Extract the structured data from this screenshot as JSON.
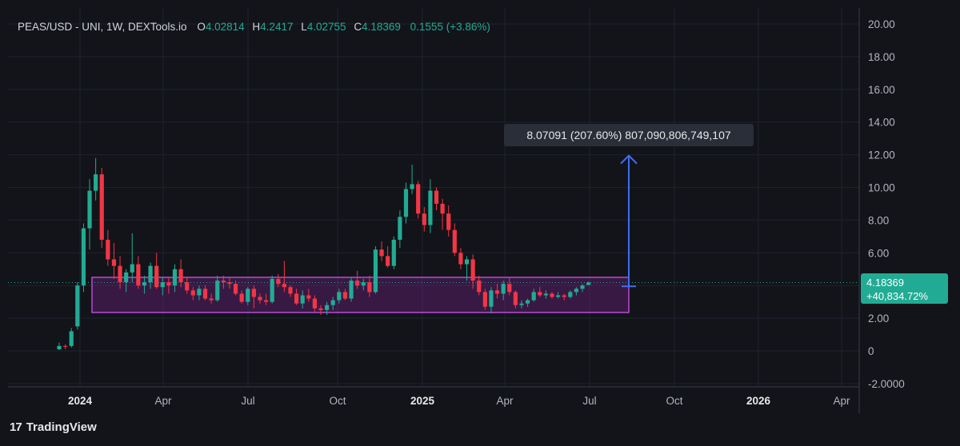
{
  "legend": {
    "symbol": "PEAS/USD - UNI, 1W, DEXTools.io",
    "o_label": "O",
    "o_value": "4.02814",
    "h_label": "H",
    "h_value": "4.2417",
    "l_label": "L",
    "l_value": "4.02755",
    "c_label": "C",
    "c_value": "4.18369",
    "change": "0.1555 (+3.86%)"
  },
  "price_badge": {
    "price": "4.18369",
    "change": "+40,834.72%"
  },
  "measure": {
    "label": "8.07091 (207.60%) 807,090,806,749,107",
    "from_price": 3.95,
    "to_price": 11.95
  },
  "range_box": {
    "low": 2.35,
    "high": 4.5
  },
  "brand": {
    "logo_text": "17",
    "name": "TradingView"
  },
  "colors": {
    "background": "#121419",
    "up": "#22ab94",
    "down": "#f23645",
    "grid": "#1f2230",
    "axis_text": "#b2b5be",
    "box_fill": "rgba(156, 39, 176, 0.28)",
    "box_stroke": "#b84bd6",
    "measure": "#3f6df2",
    "badge": "#22ab94"
  },
  "chart_data": {
    "type": "candlestick",
    "title": "PEAS/USD - UNI, 1W, DEXTools.io",
    "y_ticks": [
      "20.00",
      "18.00",
      "16.00",
      "14.00",
      "12.00",
      "10.00",
      "8.00",
      "6.00",
      "4.00",
      "2.00",
      "0",
      "-2.0000"
    ],
    "ylim": [
      -2.0,
      20.8
    ],
    "x_ticks": [
      {
        "label": "2024",
        "bold": true
      },
      {
        "label": "Apr",
        "bold": false
      },
      {
        "label": "Jul",
        "bold": false
      },
      {
        "label": "Oct",
        "bold": false
      },
      {
        "label": "2025",
        "bold": true
      },
      {
        "label": "Apr",
        "bold": false
      },
      {
        "label": "Jul",
        "bold": false
      },
      {
        "label": "Oct",
        "bold": false
      },
      {
        "label": "2026",
        "bold": true
      },
      {
        "label": "Apr",
        "bold": false
      }
    ],
    "last_price": 4.18369,
    "candles": [
      [
        0.1,
        0.5,
        0.05,
        0.3
      ],
      [
        0.3,
        0.4,
        0.1,
        0.25
      ],
      [
        0.3,
        1.4,
        0.2,
        1.2
      ],
      [
        1.5,
        4.2,
        1.3,
        4.0
      ],
      [
        4.0,
        7.8,
        3.6,
        7.5
      ],
      [
        7.5,
        10.5,
        6.2,
        9.8
      ],
      [
        9.8,
        11.8,
        9.2,
        10.8
      ],
      [
        10.8,
        11.2,
        6.3,
        6.8
      ],
      [
        6.8,
        7.4,
        5.2,
        5.6
      ],
      [
        5.6,
        6.6,
        4.4,
        5.2
      ],
      [
        5.2,
        5.8,
        3.8,
        4.2
      ],
      [
        4.2,
        5.0,
        3.6,
        4.8
      ],
      [
        4.8,
        7.2,
        4.2,
        5.3
      ],
      [
        5.3,
        5.8,
        3.8,
        4.0
      ],
      [
        4.0,
        4.6,
        3.5,
        4.2
      ],
      [
        4.2,
        5.4,
        3.8,
        5.2
      ],
      [
        5.2,
        6.0,
        3.8,
        3.9
      ],
      [
        3.9,
        4.5,
        3.4,
        4.2
      ],
      [
        4.2,
        4.5,
        3.5,
        4.0
      ],
      [
        4.0,
        5.3,
        3.6,
        5.0
      ],
      [
        5.0,
        5.6,
        3.9,
        4.2
      ],
      [
        4.2,
        4.5,
        3.5,
        3.7
      ],
      [
        3.7,
        3.9,
        3.1,
        3.4
      ],
      [
        3.4,
        4.0,
        3.1,
        3.8
      ],
      [
        3.8,
        4.0,
        3.1,
        3.2
      ],
      [
        3.2,
        3.5,
        2.9,
        3.1
      ],
      [
        3.1,
        4.6,
        3.0,
        4.3
      ],
      [
        4.3,
        4.6,
        3.8,
        4.2
      ],
      [
        4.2,
        4.5,
        3.8,
        4.1
      ],
      [
        4.1,
        4.3,
        3.4,
        3.5
      ],
      [
        3.5,
        3.7,
        2.9,
        3.0
      ],
      [
        3.0,
        3.9,
        2.8,
        3.8
      ],
      [
        3.8,
        4.0,
        2.6,
        3.3
      ],
      [
        3.3,
        3.5,
        2.9,
        3.1
      ],
      [
        3.1,
        3.5,
        2.8,
        3.0
      ],
      [
        3.0,
        4.6,
        2.9,
        4.4
      ],
      [
        4.4,
        4.7,
        3.9,
        4.1
      ],
      [
        4.1,
        5.5,
        3.6,
        3.9
      ],
      [
        3.9,
        4.0,
        3.3,
        3.5
      ],
      [
        3.5,
        3.8,
        2.8,
        2.9
      ],
      [
        2.9,
        3.7,
        2.6,
        3.4
      ],
      [
        3.4,
        3.8,
        3.0,
        3.2
      ],
      [
        3.2,
        3.4,
        2.4,
        2.6
      ],
      [
        2.6,
        2.8,
        2.2,
        2.5
      ],
      [
        2.5,
        3.0,
        2.2,
        2.8
      ],
      [
        2.8,
        3.3,
        2.5,
        3.1
      ],
      [
        3.1,
        3.8,
        2.9,
        3.6
      ],
      [
        3.6,
        3.8,
        3.1,
        3.2
      ],
      [
        3.2,
        4.5,
        3.0,
        4.3
      ],
      [
        4.3,
        4.9,
        3.8,
        4.0
      ],
      [
        4.0,
        4.4,
        3.7,
        4.2
      ],
      [
        4.2,
        4.6,
        3.3,
        3.6
      ],
      [
        3.6,
        6.4,
        3.5,
        6.2
      ],
      [
        6.2,
        6.7,
        5.5,
        5.8
      ],
      [
        5.8,
        6.4,
        5.1,
        5.2
      ],
      [
        5.2,
        7.0,
        5.0,
        6.8
      ],
      [
        6.8,
        8.6,
        6.3,
        8.2
      ],
      [
        8.2,
        10.3,
        7.8,
        9.9
      ],
      [
        9.9,
        11.4,
        9.6,
        10.2
      ],
      [
        10.2,
        10.4,
        8.1,
        8.4
      ],
      [
        8.4,
        8.8,
        7.3,
        7.7
      ],
      [
        7.7,
        10.5,
        7.2,
        9.8
      ],
      [
        9.8,
        10.0,
        8.6,
        9.0
      ],
      [
        9.0,
        9.3,
        7.4,
        8.4
      ],
      [
        8.4,
        8.9,
        7.0,
        7.4
      ],
      [
        7.4,
        7.8,
        5.8,
        6.0
      ],
      [
        6.0,
        6.3,
        5.0,
        5.3
      ],
      [
        5.3,
        5.8,
        4.3,
        5.6
      ],
      [
        5.6,
        5.9,
        3.8,
        4.3
      ],
      [
        4.3,
        4.6,
        3.4,
        3.6
      ],
      [
        3.6,
        3.8,
        2.5,
        2.7
      ],
      [
        2.7,
        3.9,
        2.3,
        3.7
      ],
      [
        3.7,
        4.1,
        3.2,
        3.5
      ],
      [
        3.5,
        4.3,
        3.1,
        4.1
      ],
      [
        4.1,
        4.5,
        3.4,
        3.6
      ],
      [
        3.6,
        3.7,
        2.6,
        2.8
      ],
      [
        2.8,
        3.1,
        2.6,
        2.9
      ],
      [
        2.9,
        3.2,
        2.7,
        3.1
      ],
      [
        3.1,
        3.8,
        3.0,
        3.6
      ],
      [
        3.6,
        3.9,
        3.3,
        3.4
      ],
      [
        3.4,
        3.7,
        3.2,
        3.5
      ],
      [
        3.5,
        3.6,
        3.2,
        3.3
      ],
      [
        3.3,
        3.6,
        3.2,
        3.4
      ],
      [
        3.4,
        3.5,
        3.1,
        3.3
      ],
      [
        3.3,
        3.7,
        3.2,
        3.6
      ],
      [
        3.6,
        3.9,
        3.4,
        3.8
      ],
      [
        3.8,
        4.1,
        3.6,
        4.0
      ],
      [
        4.03,
        4.24,
        4.03,
        4.18
      ]
    ]
  }
}
